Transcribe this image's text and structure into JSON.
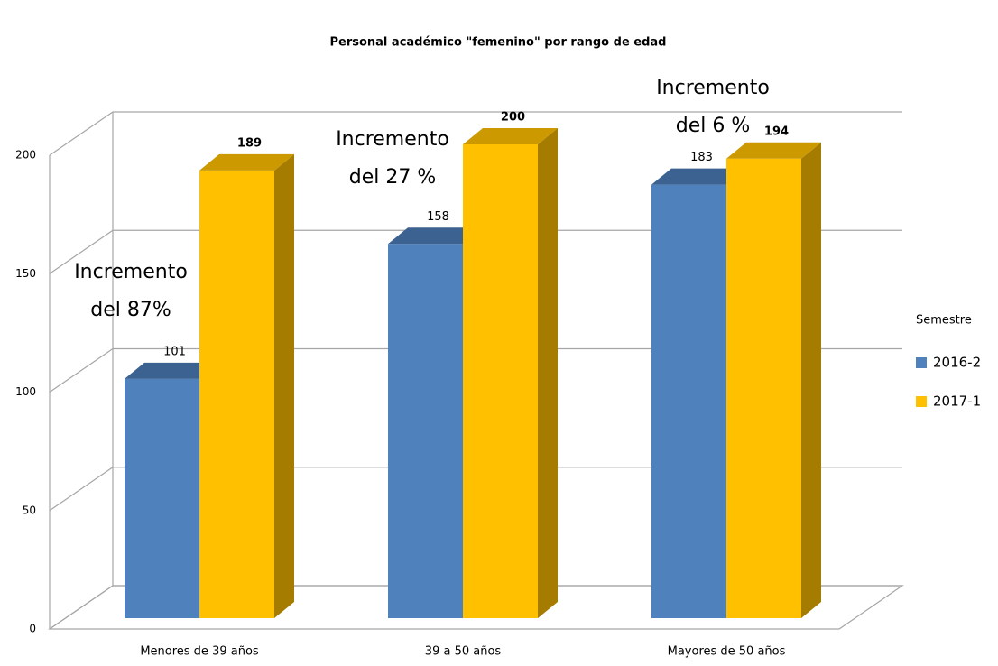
{
  "chart_data": {
    "type": "bar3d",
    "title": "Personal académico \"femenino\" por rango de edad",
    "categories": [
      "Menores de 39 años",
      "39 a 50 años",
      "Mayores de 50 años"
    ],
    "series": [
      {
        "name": "2016-2",
        "color": "#4f81bd",
        "values": [
          101,
          158,
          183
        ]
      },
      {
        "name": "2017-1",
        "color": "#ffc000",
        "values": [
          189,
          200,
          194
        ]
      }
    ],
    "ylim": [
      0,
      200
    ],
    "yticks": [
      0,
      50,
      100,
      150,
      200
    ],
    "grid": true,
    "legend_title": "Semestre",
    "legend": "right",
    "annotations": [
      [
        "Incremento",
        "del 87%"
      ],
      [
        "Incremento",
        "del 27 %"
      ],
      [
        "Incremento",
        "del 6 %"
      ]
    ]
  }
}
